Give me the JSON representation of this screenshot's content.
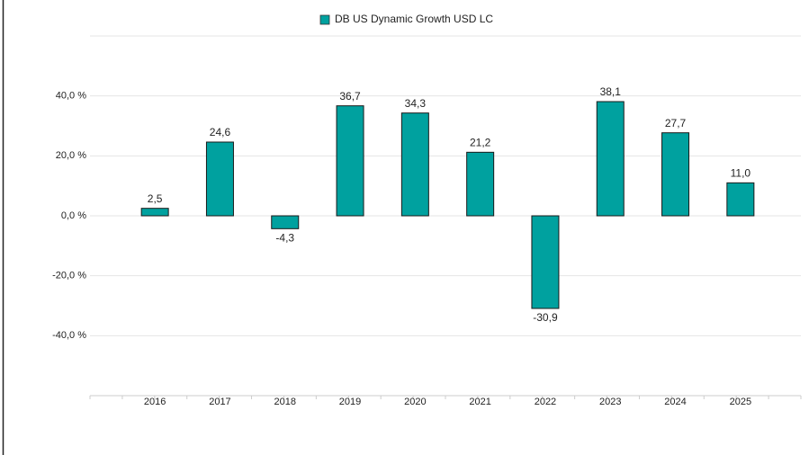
{
  "chart_data": {
    "type": "bar",
    "legend": "DB US Dynamic Growth USD LC",
    "categories": [
      "2016",
      "2017",
      "2018",
      "2019",
      "2020",
      "2021",
      "2022",
      "2023",
      "2024",
      "2025"
    ],
    "values": [
      2.5,
      24.6,
      -4.3,
      36.7,
      34.3,
      21.2,
      -30.9,
      38.1,
      27.7,
      11.0
    ],
    "value_labels": [
      "2,5",
      "24,6",
      "-4,3",
      "36,7",
      "34,3",
      "21,2",
      "-30,9",
      "38,1",
      "27,7",
      "11,0"
    ],
    "color": "#00a19f",
    "ylim": [
      -60,
      60
    ],
    "yticks": [
      {
        "value": 40,
        "label": "40,0 %"
      },
      {
        "value": 20,
        "label": "20,0 %"
      },
      {
        "value": 0,
        "label": "0,0 %"
      },
      {
        "value": -20,
        "label": "-20,0 %"
      },
      {
        "value": -40,
        "label": "-40,0 %"
      }
    ],
    "grid": true
  }
}
